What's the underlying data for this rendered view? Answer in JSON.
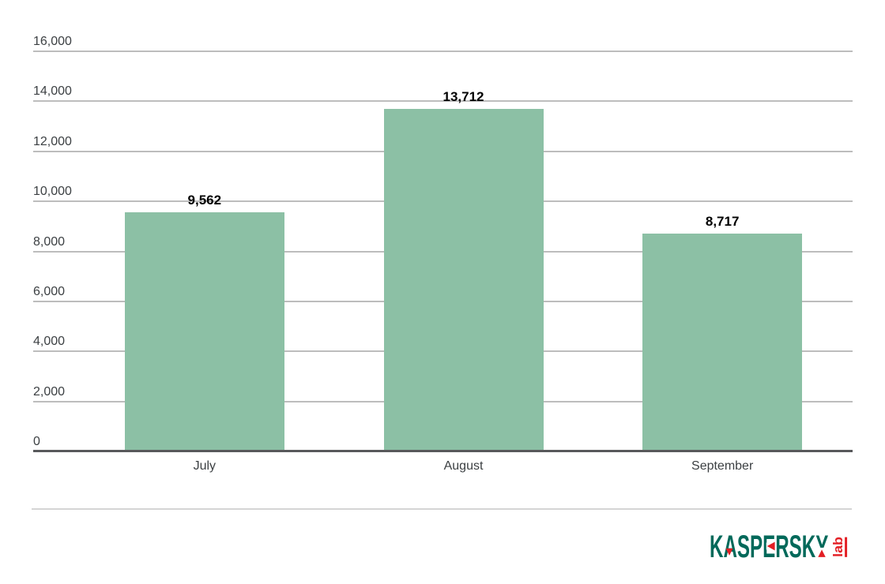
{
  "chart_data": {
    "type": "bar",
    "title": "",
    "xlabel": "",
    "ylabel": "",
    "categories": [
      "July",
      "August",
      "September"
    ],
    "values": [
      9562,
      13712,
      8717
    ],
    "value_labels": [
      "9,562",
      "13,712",
      "8,717"
    ],
    "ylim": [
      0,
      16000
    ],
    "ytick_step": 2000,
    "ytick_labels": [
      "0",
      "2,000",
      "4,000",
      "6,000",
      "8,000",
      "10,000",
      "12,000",
      "14,000",
      "16,000"
    ],
    "grid": true,
    "legend": "none"
  },
  "colors": {
    "background": "#ffffff",
    "bar": "#8cc0a5",
    "gridline": "#bdbdbd",
    "axis": "#58595b",
    "tick_text": "#3c4043",
    "value_text": "#000000",
    "divider": "#d5d5d5",
    "logo_green": "#00695a",
    "logo_red": "#e31e24"
  },
  "footer": {
    "logo": {
      "brand": "KASPERSKY",
      "sub": "lab"
    }
  }
}
